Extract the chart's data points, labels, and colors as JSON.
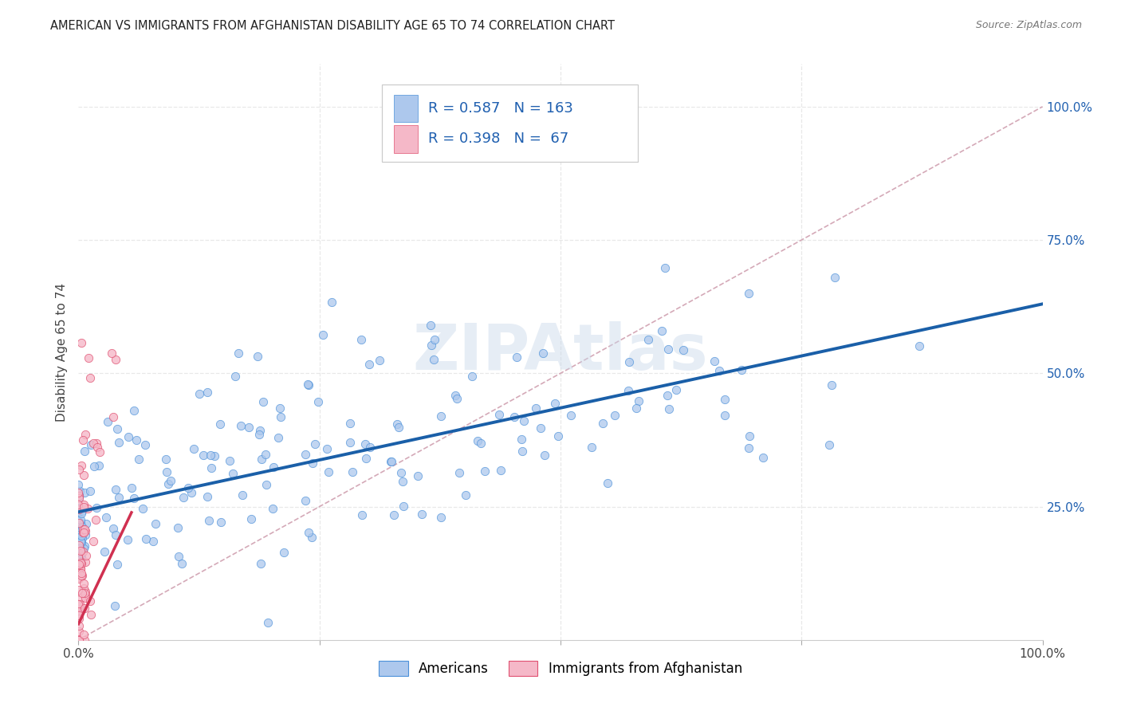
{
  "title": "AMERICAN VS IMMIGRANTS FROM AFGHANISTAN DISABILITY AGE 65 TO 74 CORRELATION CHART",
  "source": "Source: ZipAtlas.com",
  "ylabel": "Disability Age 65 to 74",
  "watermark": "ZIPAtlas",
  "R_americans": 0.587,
  "N_americans": 163,
  "R_immigrants": 0.398,
  "N_immigrants": 67,
  "american_fill": "#adc8ed",
  "american_edge": "#4a90d9",
  "immigrant_fill": "#f5b8c8",
  "immigrant_edge": "#e05070",
  "american_line_color": "#1a5fa8",
  "immigrant_line_color": "#d03050",
  "diagonal_color": "#d0a0b0",
  "background_color": "#ffffff",
  "grid_color": "#e8e8e8",
  "right_tick_color": "#2060b0",
  "title_fontsize": 10.5,
  "source_fontsize": 9,
  "legend_fontsize": 13,
  "tick_fontsize": 11,
  "ylabel_fontsize": 11
}
